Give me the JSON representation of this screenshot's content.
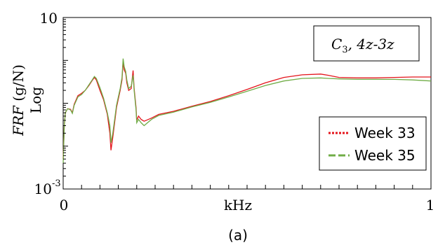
{
  "chart_data": {
    "type": "line",
    "title": "",
    "annotation": {
      "prefix": "C",
      "subscript": "3",
      "suffix": ", 4z-3z"
    },
    "xlabel": "kHz",
    "ylabel_italic": "FRF",
    "ylabel_unit": " (g/N)",
    "ylabel_scale": "Log",
    "xlim": [
      0,
      1
    ],
    "ylim": [
      0.001,
      10
    ],
    "y_scale": "log",
    "grid": false,
    "legend_position": "bottom-right",
    "x_ticks": [
      {
        "value": 0,
        "label": "0"
      },
      {
        "value": 1,
        "label": "1"
      }
    ],
    "y_ticks": [
      {
        "value": 10,
        "label": "10"
      },
      {
        "value": 0.001,
        "label_base": "10",
        "label_exp": "-3"
      }
    ],
    "series": [
      {
        "name": "Week 33",
        "color": "#e4141b",
        "style": "dotted",
        "points": [
          [
            0.0,
            0.005
          ],
          [
            0.003,
            0.03
          ],
          [
            0.006,
            0.06
          ],
          [
            0.012,
            0.075
          ],
          [
            0.02,
            0.072
          ],
          [
            0.025,
            0.06
          ],
          [
            0.03,
            0.095
          ],
          [
            0.04,
            0.15
          ],
          [
            0.05,
            0.17
          ],
          [
            0.06,
            0.2
          ],
          [
            0.07,
            0.26
          ],
          [
            0.08,
            0.35
          ],
          [
            0.085,
            0.4
          ],
          [
            0.09,
            0.35
          ],
          [
            0.1,
            0.2
          ],
          [
            0.11,
            0.12
          ],
          [
            0.12,
            0.055
          ],
          [
            0.127,
            0.02
          ],
          [
            0.13,
            0.008
          ],
          [
            0.135,
            0.016
          ],
          [
            0.145,
            0.08
          ],
          [
            0.155,
            0.2
          ],
          [
            0.16,
            0.35
          ],
          [
            0.163,
            0.9
          ],
          [
            0.166,
            0.6
          ],
          [
            0.17,
            0.5
          ],
          [
            0.173,
            0.3
          ],
          [
            0.178,
            0.2
          ],
          [
            0.185,
            0.22
          ],
          [
            0.19,
            0.58
          ],
          [
            0.193,
            0.22
          ],
          [
            0.198,
            0.08
          ],
          [
            0.2,
            0.04
          ],
          [
            0.205,
            0.05
          ],
          [
            0.212,
            0.042
          ],
          [
            0.22,
            0.038
          ],
          [
            0.24,
            0.045
          ],
          [
            0.26,
            0.055
          ],
          [
            0.3,
            0.065
          ],
          [
            0.35,
            0.085
          ],
          [
            0.4,
            0.11
          ],
          [
            0.45,
            0.15
          ],
          [
            0.5,
            0.21
          ],
          [
            0.55,
            0.3
          ],
          [
            0.6,
            0.4
          ],
          [
            0.65,
            0.46
          ],
          [
            0.7,
            0.48
          ],
          [
            0.72,
            0.45
          ],
          [
            0.75,
            0.4
          ],
          [
            0.8,
            0.39
          ],
          [
            0.85,
            0.39
          ],
          [
            0.9,
            0.4
          ],
          [
            0.95,
            0.41
          ],
          [
            1.0,
            0.41
          ]
        ]
      },
      {
        "name": "Week 35",
        "color": "#70ad47",
        "style": "dashed",
        "points": [
          [
            0.0,
            0.004
          ],
          [
            0.003,
            0.03
          ],
          [
            0.006,
            0.06
          ],
          [
            0.012,
            0.075
          ],
          [
            0.02,
            0.07
          ],
          [
            0.025,
            0.058
          ],
          [
            0.03,
            0.09
          ],
          [
            0.04,
            0.14
          ],
          [
            0.05,
            0.16
          ],
          [
            0.06,
            0.2
          ],
          [
            0.07,
            0.27
          ],
          [
            0.08,
            0.36
          ],
          [
            0.085,
            0.42
          ],
          [
            0.09,
            0.38
          ],
          [
            0.1,
            0.23
          ],
          [
            0.11,
            0.13
          ],
          [
            0.12,
            0.06
          ],
          [
            0.127,
            0.03
          ],
          [
            0.13,
            0.012
          ],
          [
            0.135,
            0.02
          ],
          [
            0.145,
            0.09
          ],
          [
            0.155,
            0.22
          ],
          [
            0.16,
            0.4
          ],
          [
            0.163,
            1.1
          ],
          [
            0.166,
            0.7
          ],
          [
            0.17,
            0.55
          ],
          [
            0.173,
            0.35
          ],
          [
            0.178,
            0.22
          ],
          [
            0.185,
            0.25
          ],
          [
            0.19,
            0.45
          ],
          [
            0.193,
            0.2
          ],
          [
            0.198,
            0.07
          ],
          [
            0.2,
            0.035
          ],
          [
            0.205,
            0.042
          ],
          [
            0.212,
            0.035
          ],
          [
            0.22,
            0.03
          ],
          [
            0.24,
            0.042
          ],
          [
            0.26,
            0.052
          ],
          [
            0.3,
            0.062
          ],
          [
            0.35,
            0.082
          ],
          [
            0.4,
            0.105
          ],
          [
            0.45,
            0.14
          ],
          [
            0.5,
            0.19
          ],
          [
            0.55,
            0.26
          ],
          [
            0.6,
            0.33
          ],
          [
            0.65,
            0.38
          ],
          [
            0.7,
            0.39
          ],
          [
            0.72,
            0.38
          ],
          [
            0.75,
            0.37
          ],
          [
            0.8,
            0.36
          ],
          [
            0.85,
            0.36
          ],
          [
            0.9,
            0.36
          ],
          [
            0.95,
            0.35
          ],
          [
            1.0,
            0.33
          ]
        ]
      }
    ]
  },
  "caption": "(a)"
}
